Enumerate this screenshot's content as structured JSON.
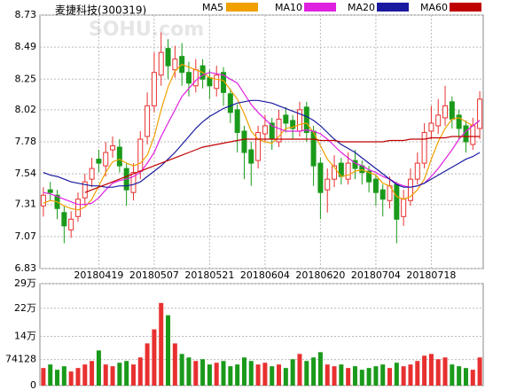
{
  "chart_data": [
    {
      "type": "candlestick",
      "title": "麦捷科技(300319)",
      "watermark": "SOHU.com",
      "up_color": "#e83030",
      "down_color": "#1a9a1a",
      "categories": [
        null,
        null,
        null,
        null,
        null,
        null,
        null,
        null,
        "20180419",
        null,
        null,
        null,
        null,
        null,
        null,
        null,
        "20180507",
        null,
        null,
        null,
        null,
        null,
        null,
        null,
        "20180521",
        null,
        null,
        null,
        null,
        null,
        null,
        null,
        "20180604",
        null,
        null,
        null,
        null,
        null,
        null,
        null,
        "20180620",
        null,
        null,
        null,
        null,
        null,
        null,
        null,
        "20180704",
        null,
        null,
        null,
        null,
        null,
        null,
        null,
        "20180718",
        null,
        null,
        null,
        null,
        null,
        null,
        null
      ],
      "open": [
        7.3,
        7.42,
        7.38,
        7.25,
        7.12,
        7.22,
        7.36,
        7.5,
        7.65,
        7.6,
        7.72,
        7.74,
        7.58,
        7.4,
        7.56,
        7.82,
        8.05,
        8.28,
        8.48,
        8.32,
        8.42,
        8.3,
        8.2,
        8.35,
        8.26,
        8.18,
        8.3,
        8.14,
        8.02,
        7.86,
        7.72,
        7.64,
        7.84,
        7.92,
        7.78,
        7.98,
        7.94,
        7.86,
        8.04,
        7.86,
        7.62,
        7.42,
        7.5,
        7.62,
        7.5,
        7.64,
        7.6,
        7.56,
        7.5,
        7.42,
        7.34,
        7.46,
        7.22,
        7.34,
        7.5,
        7.62,
        7.86,
        7.9,
        7.96,
        8.08,
        7.98,
        7.9,
        7.76,
        7.88
      ],
      "high": [
        7.44,
        7.48,
        7.42,
        7.3,
        7.26,
        7.4,
        7.54,
        7.66,
        7.72,
        7.78,
        7.82,
        7.8,
        7.62,
        7.62,
        7.86,
        8.15,
        8.45,
        8.6,
        8.55,
        8.5,
        8.52,
        8.38,
        8.4,
        8.4,
        8.32,
        8.35,
        8.34,
        8.18,
        8.06,
        7.9,
        7.78,
        7.9,
        7.98,
        7.96,
        8.02,
        8.04,
        7.98,
        8.08,
        8.08,
        7.9,
        7.66,
        7.58,
        7.68,
        7.66,
        7.7,
        7.72,
        7.64,
        7.6,
        7.54,
        7.46,
        7.52,
        7.48,
        7.42,
        7.58,
        7.7,
        7.92,
        8.05,
        8.1,
        8.2,
        8.12,
        8.02,
        7.94,
        7.96,
        8.16
      ],
      "low": [
        7.22,
        7.34,
        7.2,
        7.02,
        7.06,
        7.18,
        7.3,
        7.44,
        7.55,
        7.52,
        7.66,
        7.55,
        7.3,
        7.34,
        7.5,
        7.76,
        8.0,
        8.2,
        8.25,
        8.26,
        8.2,
        8.12,
        8.15,
        8.18,
        8.1,
        8.12,
        8.05,
        7.92,
        7.7,
        7.5,
        7.45,
        7.58,
        7.78,
        7.72,
        7.74,
        7.85,
        7.8,
        7.82,
        7.78,
        7.45,
        7.2,
        7.25,
        7.44,
        7.46,
        7.46,
        7.5,
        7.46,
        7.4,
        7.3,
        7.22,
        7.28,
        7.02,
        7.15,
        7.3,
        7.46,
        7.58,
        7.8,
        7.84,
        7.9,
        7.88,
        7.8,
        7.7,
        7.72,
        7.8
      ],
      "close": [
        7.38,
        7.4,
        7.28,
        7.15,
        7.2,
        7.35,
        7.48,
        7.58,
        7.62,
        7.7,
        7.75,
        7.6,
        7.42,
        7.55,
        7.8,
        8.05,
        8.3,
        8.45,
        8.35,
        8.4,
        8.3,
        8.22,
        8.32,
        8.25,
        8.2,
        8.28,
        8.15,
        8.0,
        7.85,
        7.7,
        7.62,
        7.85,
        7.9,
        7.8,
        7.95,
        7.92,
        7.88,
        8.02,
        7.85,
        7.6,
        7.4,
        7.5,
        7.6,
        7.52,
        7.62,
        7.58,
        7.55,
        7.48,
        7.4,
        7.35,
        7.45,
        7.2,
        7.35,
        7.5,
        7.62,
        7.85,
        7.92,
        7.98,
        8.05,
        7.95,
        7.88,
        7.78,
        7.9,
        8.1
      ],
      "series": [
        {
          "name": "MA5",
          "color": "#f0a000",
          "values": [
            7.32,
            7.34,
            7.33,
            7.3,
            7.28,
            7.27,
            7.29,
            7.35,
            7.45,
            7.55,
            7.63,
            7.65,
            7.62,
            7.6,
            7.62,
            7.68,
            7.82,
            8.02,
            8.19,
            8.31,
            8.36,
            8.34,
            8.32,
            8.3,
            8.26,
            8.25,
            8.24,
            8.17,
            8.1,
            7.99,
            7.86,
            7.8,
            7.78,
            7.77,
            7.82,
            7.88,
            7.89,
            7.91,
            7.92,
            7.85,
            7.75,
            7.65,
            7.59,
            7.52,
            7.53,
            7.56,
            7.57,
            7.55,
            7.53,
            7.47,
            7.45,
            7.37,
            7.35,
            7.37,
            7.42,
            7.5,
            7.65,
            7.78,
            7.88,
            7.95,
            7.96,
            7.93,
            7.9,
            7.94
          ]
        },
        {
          "name": "MA10",
          "color": "#e020e0",
          "values": [
            7.4,
            7.39,
            7.37,
            7.35,
            7.33,
            7.31,
            7.31,
            7.32,
            7.36,
            7.42,
            7.47,
            7.49,
            7.5,
            7.52,
            7.55,
            7.62,
            7.7,
            7.82,
            7.92,
            8.02,
            8.12,
            8.18,
            8.24,
            8.28,
            8.3,
            8.29,
            8.28,
            8.25,
            8.22,
            8.14,
            8.06,
            8.0,
            7.95,
            7.9,
            7.88,
            7.86,
            7.86,
            7.86,
            7.87,
            7.86,
            7.84,
            7.8,
            7.75,
            7.7,
            7.66,
            7.62,
            7.6,
            7.57,
            7.55,
            7.52,
            7.5,
            7.47,
            7.45,
            7.44,
            7.45,
            7.47,
            7.52,
            7.58,
            7.65,
            7.72,
            7.8,
            7.86,
            7.9,
            7.94
          ]
        },
        {
          "name": "MA20",
          "color": "#1a1aa0",
          "values": [
            7.55,
            7.53,
            7.52,
            7.5,
            7.48,
            7.47,
            7.46,
            7.45,
            7.45,
            7.44,
            7.44,
            7.45,
            7.45,
            7.46,
            7.48,
            7.52,
            7.56,
            7.6,
            7.65,
            7.7,
            7.76,
            7.82,
            7.88,
            7.93,
            7.97,
            8.0,
            8.03,
            8.05,
            8.07,
            8.08,
            8.09,
            8.09,
            8.08,
            8.07,
            8.05,
            8.03,
            8.01,
            7.99,
            7.97,
            7.94,
            7.9,
            7.85,
            7.8,
            7.76,
            7.73,
            7.7,
            7.66,
            7.62,
            7.58,
            7.54,
            7.5,
            7.46,
            7.44,
            7.44,
            7.45,
            7.47,
            7.5,
            7.53,
            7.56,
            7.59,
            7.62,
            7.65,
            7.67,
            7.7
          ]
        },
        {
          "name": "MA60",
          "color": "#c00000",
          "values": [
            null,
            null,
            null,
            null,
            null,
            null,
            7.4,
            7.42,
            7.44,
            7.46,
            7.48,
            7.5,
            7.52,
            7.54,
            7.56,
            7.58,
            7.6,
            7.62,
            7.64,
            7.66,
            7.68,
            7.7,
            7.72,
            7.74,
            7.75,
            7.76,
            7.77,
            7.78,
            7.79,
            7.8,
            7.8,
            7.8,
            7.8,
            7.8,
            7.8,
            7.8,
            7.8,
            7.8,
            7.8,
            7.8,
            7.79,
            7.79,
            7.79,
            7.78,
            7.78,
            7.78,
            7.78,
            7.78,
            7.78,
            7.78,
            7.79,
            7.79,
            7.79,
            7.8,
            7.8,
            7.8,
            7.81,
            7.81,
            7.81,
            7.82,
            7.82,
            7.82,
            7.82,
            7.82
          ]
        }
      ],
      "ylim": [
        6.83,
        8.73
      ],
      "yticks": [
        6.83,
        7.07,
        7.31,
        7.54,
        7.78,
        8.02,
        8.25,
        8.49,
        8.73
      ],
      "grid": true
    },
    {
      "type": "bar",
      "values": [
        50000,
        60000,
        45000,
        55000,
        40000,
        50000,
        60000,
        70000,
        100000,
        60000,
        55000,
        65000,
        70000,
        60000,
        80000,
        120000,
        160000,
        235000,
        200000,
        120000,
        90000,
        80000,
        70000,
        75000,
        60000,
        65000,
        70000,
        55000,
        60000,
        80000,
        70000,
        60000,
        65000,
        55000,
        60000,
        50000,
        75000,
        90000,
        70000,
        80000,
        95000,
        60000,
        55000,
        60000,
        50000,
        55000,
        45000,
        50000,
        55000,
        60000,
        50000,
        65000,
        55000,
        60000,
        70000,
        85000,
        90000,
        75000,
        80000,
        60000,
        55000,
        50000,
        45000,
        80000
      ],
      "ylim": [
        0,
        290000
      ],
      "yticks": [
        0,
        74128,
        {
          "value": 140000,
          "label": "14万"
        },
        {
          "value": 220000,
          "label": "22万"
        },
        {
          "value": 290000,
          "label": "29万"
        }
      ]
    }
  ]
}
